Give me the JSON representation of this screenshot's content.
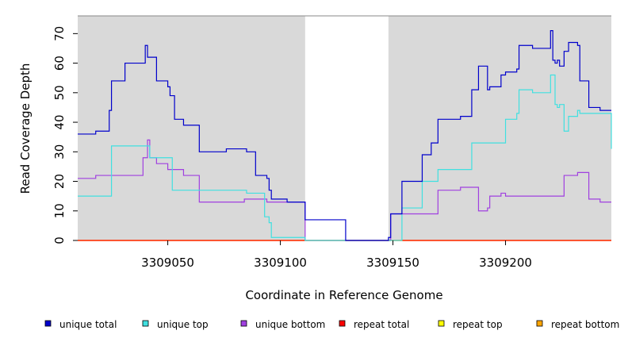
{
  "chart_data": {
    "type": "line",
    "title": "",
    "xlabel": "Coordinate in Reference Genome",
    "ylabel": "Read Coverage Depth",
    "xlim": [
      3309010,
      3309247
    ],
    "ylim": [
      0,
      76
    ],
    "background_color": "#d9d9d9",
    "gap_color": "#ffffff",
    "gap_regions": [
      [
        3309111,
        3309148
      ]
    ],
    "x_ticks": [
      3309050,
      3309100,
      3309150,
      3309200
    ],
    "x_tick_labels": [
      "3309050",
      "3309100",
      "3309150",
      "3309200"
    ],
    "y_ticks": [
      0,
      10,
      20,
      30,
      40,
      50,
      60,
      70
    ],
    "y_tick_labels": [
      "0",
      "10",
      "20",
      "30",
      "40",
      "50",
      "60",
      "70"
    ],
    "legend": [
      {
        "name": "unique total",
        "color": "#0000cc"
      },
      {
        "name": "unique top",
        "color": "#40e0e0"
      },
      {
        "name": "unique bottom",
        "color": "#a040e0"
      },
      {
        "name": "repeat total",
        "color": "#ff0000"
      },
      {
        "name": "repeat top",
        "color": "#ffff00"
      },
      {
        "name": "repeat bottom",
        "color": "#ffa500"
      }
    ],
    "series": [
      {
        "name": "unique total",
        "color": "#0000cc",
        "step": true,
        "x": [
          3309010,
          3309018,
          3309024,
          3309025,
          3309027,
          3309031,
          3309039,
          3309040,
          3309041,
          3309045,
          3309050,
          3309051,
          3309053,
          3309057,
          3309064,
          3309076,
          3309084,
          3309085,
          3309089,
          3309094,
          3309095,
          3309096,
          3309103,
          3309111,
          3309129,
          3309148,
          3309149,
          3309154,
          3309163,
          3309167,
          3309170,
          3309180,
          3309185,
          3309188,
          3309192,
          3309193,
          3309198,
          3309200,
          3309205,
          3309206,
          3309212,
          3309220,
          3309221,
          3309222,
          3309223,
          3309224,
          3309226,
          3309228,
          3309232,
          3309233,
          3309237,
          3309242,
          3309247
        ],
        "y": [
          36,
          37,
          44,
          54,
          54,
          60,
          60,
          66,
          62,
          54,
          52,
          49,
          41,
          39,
          30,
          31,
          31,
          30,
          22,
          21,
          17,
          14,
          13,
          7,
          0,
          1,
          9,
          20,
          29,
          33,
          41,
          42,
          51,
          59,
          51,
          52,
          56,
          57,
          58,
          66,
          65,
          71,
          61,
          60,
          61,
          59,
          64,
          67,
          66,
          54,
          45,
          44,
          44
        ]
      },
      {
        "name": "unique top",
        "color": "#40e0e0",
        "step": true,
        "x": [
          3309010,
          3309025,
          3309040,
          3309042,
          3309052,
          3309084,
          3309085,
          3309093,
          3309095,
          3309096,
          3309111,
          3309129,
          3309148,
          3309149,
          3309154,
          3309163,
          3309170,
          3309180,
          3309185,
          3309200,
          3309205,
          3309206,
          3309212,
          3309220,
          3309221,
          3309222,
          3309223,
          3309224,
          3309226,
          3309228,
          3309232,
          3309233,
          3309247
        ],
        "y": [
          15,
          32,
          32,
          28,
          17,
          17,
          16,
          8,
          6,
          1,
          0,
          0,
          0,
          0,
          11,
          20,
          24,
          24,
          33,
          41,
          43,
          51,
          50,
          56,
          56,
          46,
          45,
          46,
          37,
          42,
          44,
          43,
          31
        ]
      },
      {
        "name": "unique bottom",
        "color": "#a040e0",
        "step": true,
        "x": [
          3309010,
          3309018,
          3309031,
          3309039,
          3309041,
          3309042,
          3309045,
          3309050,
          3309057,
          3309064,
          3309076,
          3309084,
          3309085,
          3309089,
          3309094,
          3309098,
          3309111,
          3309129,
          3309148,
          3309149,
          3309163,
          3309170,
          3309180,
          3309185,
          3309188,
          3309192,
          3309193,
          3309198,
          3309200,
          3309205,
          3309212,
          3309220,
          3309221,
          3309226,
          3309232,
          3309237,
          3309242,
          3309247
        ],
        "y": [
          21,
          22,
          22,
          28,
          34,
          28,
          26,
          24,
          22,
          13,
          13,
          14,
          14,
          14,
          13,
          13,
          0,
          0,
          0,
          9,
          9,
          17,
          18,
          18,
          10,
          11,
          15,
          16,
          15,
          15,
          15,
          15,
          15,
          22,
          23,
          14,
          13,
          13
        ]
      },
      {
        "name": "repeat total",
        "color": "#ff0000",
        "step": true,
        "x": [
          3309010,
          3309247
        ],
        "y": [
          0,
          0
        ]
      },
      {
        "name": "repeat top",
        "color": "#ffff00",
        "step": true,
        "x": [
          3309010,
          3309247
        ],
        "y": [
          0,
          0
        ]
      },
      {
        "name": "repeat bottom",
        "color": "#ffa500",
        "step": true,
        "x": [
          3309010,
          3309247
        ],
        "y": [
          0,
          0
        ]
      }
    ]
  }
}
